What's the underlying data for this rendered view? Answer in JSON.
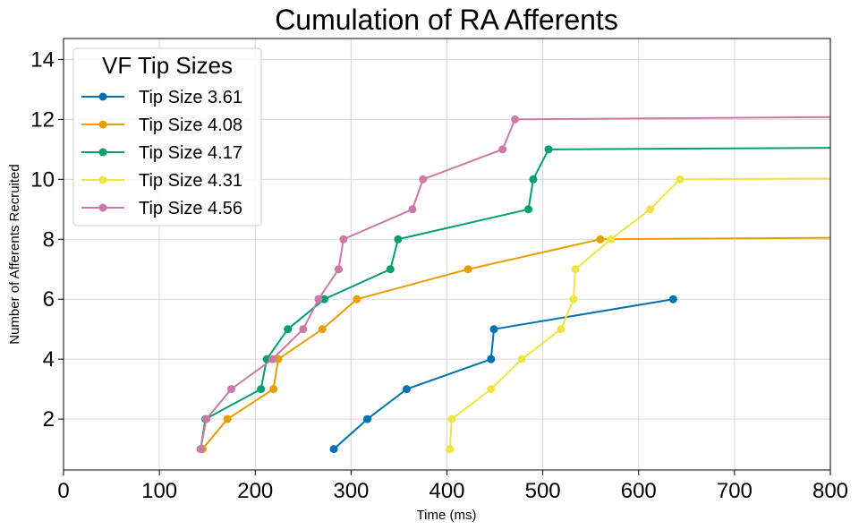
{
  "chart_data": {
    "type": "line",
    "title": "Cumulation of RA Afferents",
    "xlabel": "Time (ms)",
    "ylabel": "Number of Afferents Recruited",
    "xlim": [
      0,
      800
    ],
    "ylim": [
      0.3,
      14.7
    ],
    "xticks": [
      0,
      100,
      200,
      300,
      400,
      500,
      600,
      700,
      800
    ],
    "yticks": [
      2,
      4,
      6,
      8,
      10,
      12,
      14
    ],
    "grid": true,
    "legend": {
      "title": "VF Tip Sizes",
      "position": "top-left"
    },
    "series": [
      {
        "name": "Tip Size 3.61",
        "color": "#0072b2",
        "points": [
          [
            282,
            1
          ],
          [
            317,
            2
          ],
          [
            358,
            3
          ],
          [
            446,
            4
          ],
          [
            449,
            5
          ],
          [
            636,
            6
          ]
        ]
      },
      {
        "name": "Tip Size 4.08",
        "color": "#e69f00",
        "points": [
          [
            145,
            1
          ],
          [
            171,
            2
          ],
          [
            219,
            3
          ],
          [
            224,
            4
          ],
          [
            270,
            5
          ],
          [
            306,
            6
          ],
          [
            422,
            7
          ],
          [
            560,
            8
          ],
          [
            800,
            8.05
          ]
        ]
      },
      {
        "name": "Tip Size 4.17",
        "color": "#009e73",
        "points": [
          [
            143,
            1
          ],
          [
            148,
            2
          ],
          [
            206,
            3
          ],
          [
            212,
            4
          ],
          [
            234,
            5
          ],
          [
            272,
            6
          ],
          [
            341,
            7
          ],
          [
            349,
            8
          ],
          [
            485,
            9
          ],
          [
            490,
            10
          ],
          [
            506,
            11
          ],
          [
            800,
            11.05
          ]
        ]
      },
      {
        "name": "Tip Size 4.31",
        "color": "#f0e442",
        "points": [
          [
            403,
            1
          ],
          [
            405,
            2
          ],
          [
            446,
            3
          ],
          [
            478,
            4
          ],
          [
            519,
            5
          ],
          [
            532,
            6
          ],
          [
            534,
            7
          ],
          [
            571,
            8
          ],
          [
            612,
            9
          ],
          [
            643,
            10
          ],
          [
            800,
            10.03
          ]
        ]
      },
      {
        "name": "Tip Size 4.56",
        "color": "#cc79a7",
        "points": [
          [
            143,
            1
          ],
          [
            149,
            2
          ],
          [
            175,
            3
          ],
          [
            218,
            4
          ],
          [
            250,
            5
          ],
          [
            266,
            6
          ],
          [
            287,
            7
          ],
          [
            292,
            8
          ],
          [
            364,
            9
          ],
          [
            375,
            10
          ],
          [
            458,
            11
          ],
          [
            471,
            12
          ],
          [
            800,
            12.08
          ]
        ]
      }
    ]
  }
}
